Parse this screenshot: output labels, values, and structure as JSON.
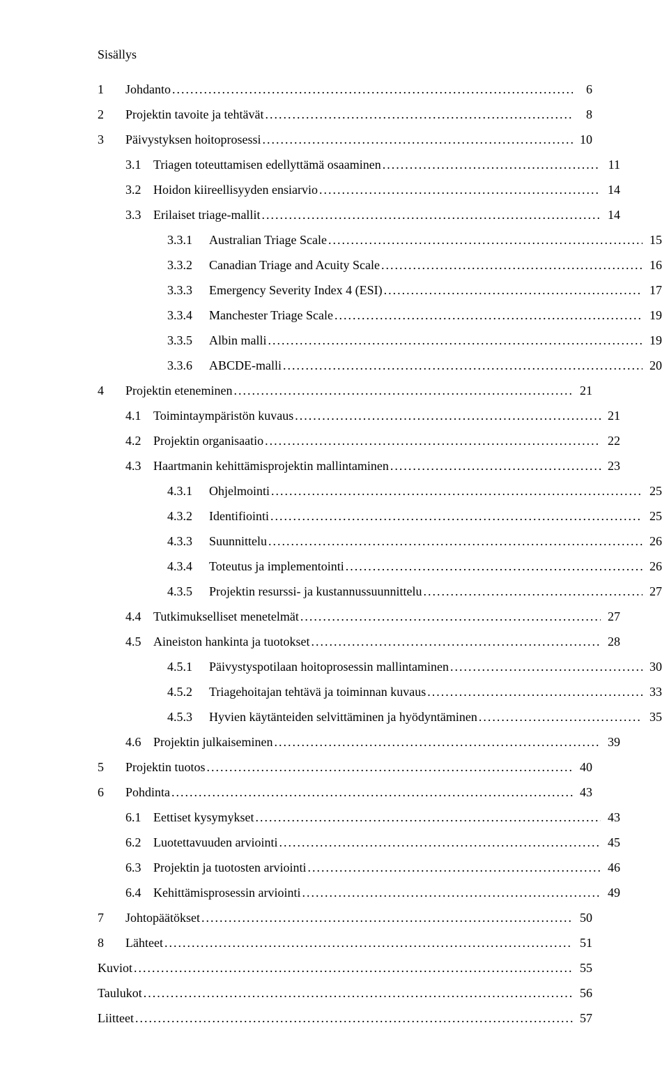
{
  "title": "Sisällys",
  "entries": [
    {
      "level": 0,
      "num": "1",
      "txt": "Johdanto",
      "pg": "6"
    },
    {
      "level": 0,
      "num": "2",
      "txt": "Projektin tavoite ja tehtävät",
      "pg": "8"
    },
    {
      "level": 0,
      "num": "3",
      "txt": "Päivystyksen hoitoprosessi",
      "pg": "10"
    },
    {
      "level": 1,
      "num": "3.1",
      "txt": "Triagen toteuttamisen edellyttämä osaaminen",
      "pg": "11"
    },
    {
      "level": 1,
      "num": "3.2",
      "txt": "Hoidon kiireellisyyden ensiarvio",
      "pg": "14"
    },
    {
      "level": 1,
      "num": "3.3",
      "txt": "Erilaiset triage-mallit",
      "pg": "14"
    },
    {
      "level": 2,
      "num": "3.3.1",
      "txt": "Australian Triage Scale",
      "pg": "15"
    },
    {
      "level": 2,
      "num": "3.3.2",
      "txt": "Canadian Triage and Acuity Scale",
      "pg": "16"
    },
    {
      "level": 2,
      "num": "3.3.3",
      "txt": "Emergency Severity Index 4 (ESI)",
      "pg": "17"
    },
    {
      "level": 2,
      "num": "3.3.4",
      "txt": "Manchester Triage Scale",
      "pg": "19"
    },
    {
      "level": 2,
      "num": "3.3.5",
      "txt": "Albin malli",
      "pg": "19"
    },
    {
      "level": 2,
      "num": "3.3.6",
      "txt": "ABCDE-malli",
      "pg": "20"
    },
    {
      "level": 0,
      "num": "4",
      "txt": "Projektin eteneminen",
      "pg": "21"
    },
    {
      "level": 1,
      "num": "4.1",
      "txt": "Toimintaympäristön kuvaus",
      "pg": "21"
    },
    {
      "level": 1,
      "num": "4.2",
      "txt": "Projektin organisaatio",
      "pg": "22"
    },
    {
      "level": 1,
      "num": "4.3",
      "txt": "Haartmanin kehittämisprojektin mallintaminen",
      "pg": "23"
    },
    {
      "level": 2,
      "num": "4.3.1",
      "txt": "Ohjelmointi",
      "pg": "25"
    },
    {
      "level": 2,
      "num": "4.3.2",
      "txt": "Identifiointi",
      "pg": "25"
    },
    {
      "level": 2,
      "num": "4.3.3",
      "txt": "Suunnittelu",
      "pg": "26"
    },
    {
      "level": 2,
      "num": "4.3.4",
      "txt": "Toteutus ja implementointi",
      "pg": "26"
    },
    {
      "level": 2,
      "num": "4.3.5",
      "txt": "Projektin resurssi- ja kustannussuunnittelu",
      "pg": "27"
    },
    {
      "level": 1,
      "num": "4.4",
      "txt": "Tutkimukselliset menetelmät",
      "pg": "27"
    },
    {
      "level": 1,
      "num": "4.5",
      "txt": "Aineiston hankinta ja tuotokset",
      "pg": "28"
    },
    {
      "level": 2,
      "num": "4.5.1",
      "txt": "Päivystyspotilaan hoitoprosessin mallintaminen",
      "pg": "30"
    },
    {
      "level": 2,
      "num": "4.5.2",
      "txt": "Triagehoitajan tehtävä ja toiminnan kuvaus",
      "pg": "33"
    },
    {
      "level": 2,
      "num": "4.5.3",
      "txt": "Hyvien käytänteiden selvittäminen ja hyödyntäminen",
      "pg": "35"
    },
    {
      "level": 1,
      "num": "4.6",
      "txt": "Projektin julkaiseminen",
      "pg": "39"
    },
    {
      "level": 0,
      "num": "5",
      "txt": "Projektin tuotos",
      "pg": "40"
    },
    {
      "level": 0,
      "num": "6",
      "txt": "Pohdinta",
      "pg": "43"
    },
    {
      "level": 1,
      "num": "6.1",
      "txt": "Eettiset kysymykset",
      "pg": "43"
    },
    {
      "level": 1,
      "num": "6.2",
      "txt": "Luotettavuuden arviointi",
      "pg": "45"
    },
    {
      "level": 1,
      "num": "6.3",
      "txt": "Projektin ja tuotosten arviointi",
      "pg": "46"
    },
    {
      "level": 1,
      "num": "6.4",
      "txt": "Kehittämisprosessin arviointi",
      "pg": "49"
    },
    {
      "level": 0,
      "num": "7",
      "txt": "Johtopäätökset",
      "pg": "50"
    },
    {
      "level": 0,
      "num": "8",
      "txt": "Lähteet",
      "pg": "51"
    },
    {
      "level": 0,
      "num": "",
      "txt": "Kuviot",
      "pg": "55"
    },
    {
      "level": 0,
      "num": "",
      "txt": "Taulukot",
      "pg": "56"
    },
    {
      "level": 0,
      "num": "",
      "txt": "Liitteet",
      "pg": "57"
    }
  ]
}
